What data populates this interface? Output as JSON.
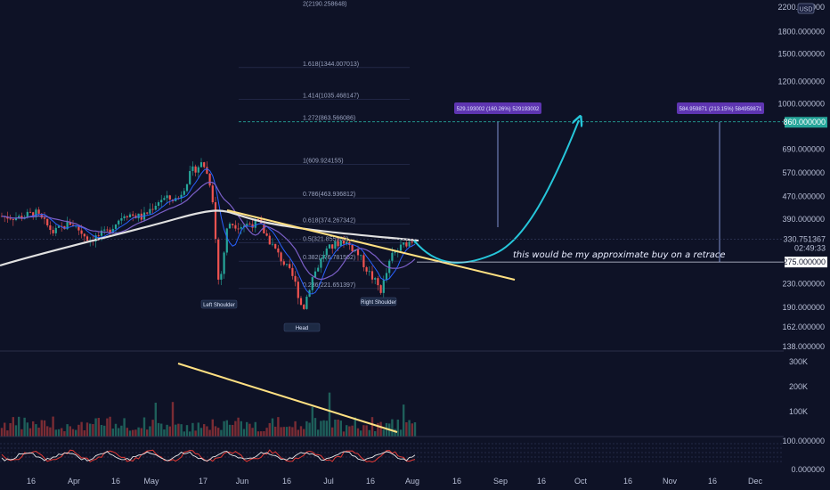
{
  "chart_data": {
    "type": "candlestick",
    "price_axis": {
      "scale": "log",
      "range": [
        130,
        2300
      ],
      "ticks": [
        {
          "value": 2200,
          "label": "2200.000000"
        },
        {
          "value": 1800,
          "label": "1800.000000"
        },
        {
          "value": 1500,
          "label": "1500.000000"
        },
        {
          "value": 1200,
          "label": "1200.000000"
        },
        {
          "value": 1000,
          "label": "1000.000000"
        },
        {
          "value": 690,
          "label": "690.000000"
        },
        {
          "value": 570,
          "label": "570.000000"
        },
        {
          "value": 470,
          "label": "470.000000"
        },
        {
          "value": 390,
          "label": "390.000000"
        },
        {
          "value": 275,
          "label": "275.000000"
        },
        {
          "value": 230,
          "label": "230.000000"
        },
        {
          "value": 190,
          "label": "190.000000"
        },
        {
          "value": 162,
          "label": "162.000000"
        },
        {
          "value": 138,
          "label": "138.000000"
        }
      ],
      "currency": "USD"
    },
    "time_axis": {
      "ticks": [
        "16",
        "Apr",
        "16",
        "May",
        "17",
        "Jun",
        "16",
        "Jul",
        "16",
        "Aug",
        "16",
        "Sep",
        "16",
        "Oct",
        "16",
        "Nov",
        "16",
        "Dec"
      ]
    },
    "current_price": {
      "value": 330.751367,
      "label": "330.751367",
      "countdown": "02:49:33"
    },
    "price_markers": [
      {
        "value": 860,
        "label": "860.000000",
        "color": "#26a69a"
      },
      {
        "value": 275,
        "label": "275.000000",
        "color": "#ffffff"
      }
    ],
    "fibonacci": [
      {
        "value": 2190.258648,
        "label": "2(2190.258648)"
      },
      {
        "value": 1344.007013,
        "label": "1.618(1344.007013)"
      },
      {
        "value": 1035.468147,
        "label": "1.414(1035.468147)"
      },
      {
        "value": 863.566086,
        "label": "1.272(863.566086)"
      },
      {
        "value": 609.924155,
        "label": "1(609.924155)"
      },
      {
        "value": 463.936812,
        "label": "0.786(463.936812)"
      },
      {
        "value": 374.267342,
        "label": "0.618(374.267342)"
      },
      {
        "value": 321.855938,
        "label": "0.5(321.855938)"
      },
      {
        "value": 276.781562,
        "label": "0.382(276.781562)"
      },
      {
        "value": 221.651397,
        "label": "0.236(221.651397)"
      }
    ],
    "annotations": {
      "left_shoulder": "Left Shoulder",
      "head": "Head",
      "right_shoulder": "Right Shoulder",
      "target_box_1": "529.193002 (160.26%) 529193002",
      "target_box_2": "584.959871 (213.15%) 584959871",
      "note": "this would be my approximate buy on a retrace"
    },
    "volume_axis": {
      "ticks": [
        {
          "value": 300000,
          "label": "300K"
        },
        {
          "value": 200000,
          "label": "200K"
        },
        {
          "value": 100000,
          "label": "100K"
        }
      ]
    },
    "oscillator_axis": {
      "ticks": [
        {
          "value": 100,
          "label": "100.000000"
        },
        {
          "value": 0,
          "label": "0.000000"
        }
      ]
    },
    "colors": {
      "background": "#0e1226",
      "up": "#26a69a",
      "down": "#ef5350",
      "ma_long": "#e0e0e0",
      "ma_mid": "#7b5fc7",
      "ma_fast": "#2962ff",
      "trendline": "#ffe082",
      "projection": "#26c6da",
      "target_box": "#5e35b1"
    },
    "grid": false
  }
}
